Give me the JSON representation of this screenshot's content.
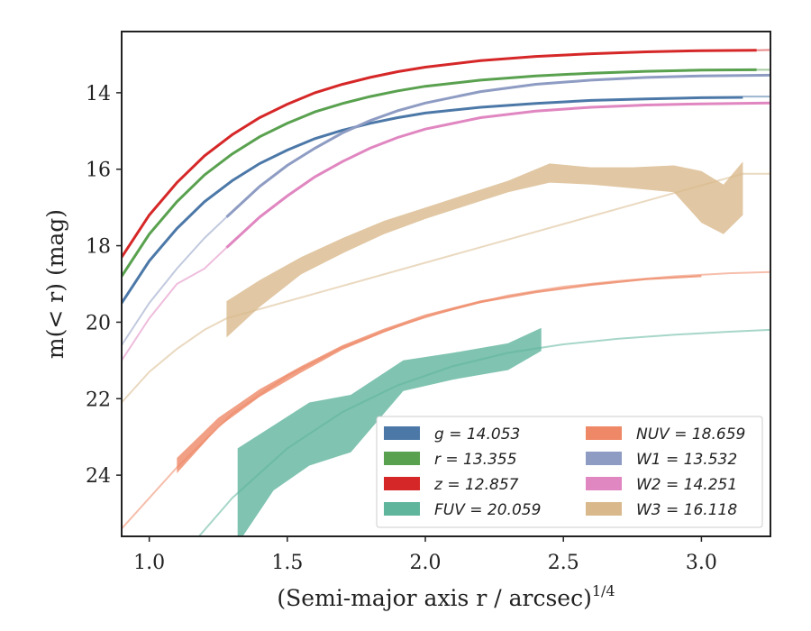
{
  "chart_data": {
    "type": "line",
    "xlabel": "(Semi-major axis r / arcsec)",
    "xlabel_sup": "1/4",
    "ylabel": "m(< r) (mag)",
    "xlim": [
      0.9,
      3.25
    ],
    "ylim": [
      25.6,
      12.4
    ],
    "y_inverted": true,
    "grid": false,
    "legend_placement": "lower-right",
    "x_ticks": [
      "1.0",
      "1.5",
      "2.0",
      "2.5",
      "3.0"
    ],
    "y_ticks": [
      "14",
      "16",
      "18",
      "20",
      "22",
      "24"
    ],
    "series": [
      {
        "name": "g = 14.053",
        "color": "#4c78a8",
        "data_line": [
          [
            0.9,
            19.5
          ],
          [
            1.0,
            18.4
          ],
          [
            1.1,
            17.55
          ],
          [
            1.2,
            16.85
          ],
          [
            1.3,
            16.3
          ],
          [
            1.4,
            15.85
          ],
          [
            1.5,
            15.5
          ],
          [
            1.6,
            15.2
          ],
          [
            1.7,
            14.98
          ],
          [
            1.8,
            14.8
          ],
          [
            1.9,
            14.65
          ],
          [
            2.0,
            14.53
          ],
          [
            2.2,
            14.38
          ],
          [
            2.4,
            14.28
          ],
          [
            2.6,
            14.2
          ],
          [
            2.8,
            14.16
          ],
          [
            3.0,
            14.13
          ],
          [
            3.15,
            14.12
          ]
        ],
        "model_line": [
          [
            3.15,
            14.1
          ],
          [
            3.25,
            14.1
          ]
        ]
      },
      {
        "name": "r = 13.355",
        "color": "#59a14f",
        "data_line": [
          [
            0.9,
            18.8
          ],
          [
            1.0,
            17.7
          ],
          [
            1.1,
            16.85
          ],
          [
            1.2,
            16.15
          ],
          [
            1.3,
            15.6
          ],
          [
            1.4,
            15.15
          ],
          [
            1.5,
            14.8
          ],
          [
            1.6,
            14.5
          ],
          [
            1.7,
            14.28
          ],
          [
            1.8,
            14.1
          ],
          [
            1.9,
            13.95
          ],
          [
            2.0,
            13.83
          ],
          [
            2.2,
            13.67
          ],
          [
            2.4,
            13.56
          ],
          [
            2.6,
            13.49
          ],
          [
            2.8,
            13.44
          ],
          [
            3.0,
            13.41
          ],
          [
            3.2,
            13.4
          ]
        ],
        "model_line": [
          [
            3.2,
            13.4
          ],
          [
            3.25,
            13.4
          ]
        ]
      },
      {
        "name": "z = 12.857",
        "color": "#d62728",
        "data_line": [
          [
            0.9,
            18.3
          ],
          [
            1.0,
            17.2
          ],
          [
            1.1,
            16.35
          ],
          [
            1.2,
            15.65
          ],
          [
            1.3,
            15.1
          ],
          [
            1.4,
            14.65
          ],
          [
            1.5,
            14.3
          ],
          [
            1.6,
            14.0
          ],
          [
            1.7,
            13.78
          ],
          [
            1.8,
            13.6
          ],
          [
            1.9,
            13.45
          ],
          [
            2.0,
            13.33
          ],
          [
            2.2,
            13.16
          ],
          [
            2.4,
            13.05
          ],
          [
            2.6,
            12.98
          ],
          [
            2.8,
            12.93
          ],
          [
            3.0,
            12.9
          ],
          [
            3.2,
            12.89
          ]
        ],
        "model_line": [
          [
            3.2,
            12.89
          ],
          [
            3.25,
            12.88
          ]
        ]
      },
      {
        "name": "FUV = 20.059",
        "color": "#5fb49c",
        "band": [
          [
            1.32,
            23.3,
            25.8
          ],
          [
            1.45,
            22.7,
            24.4
          ],
          [
            1.58,
            22.1,
            23.75
          ],
          [
            1.73,
            21.9,
            23.4
          ],
          [
            1.92,
            21.0,
            21.8
          ],
          [
            2.1,
            20.8,
            21.5
          ],
          [
            2.3,
            20.55,
            21.25
          ],
          [
            2.42,
            20.15,
            20.75
          ]
        ],
        "model_line": [
          [
            1.18,
            25.6
          ],
          [
            1.3,
            24.6
          ],
          [
            1.5,
            23.3
          ],
          [
            1.7,
            22.35
          ],
          [
            1.9,
            21.65
          ],
          [
            2.1,
            21.15
          ],
          [
            2.3,
            20.8
          ],
          [
            2.5,
            20.58
          ],
          [
            2.7,
            20.43
          ],
          [
            2.9,
            20.33
          ],
          [
            3.1,
            20.25
          ],
          [
            3.25,
            20.2
          ]
        ]
      },
      {
        "name": "NUV = 18.659",
        "color": "#ee8866",
        "band": [
          [
            1.1,
            23.55,
            23.95
          ],
          [
            1.25,
            22.5,
            22.75
          ],
          [
            1.4,
            21.75,
            21.95
          ],
          [
            1.55,
            21.15,
            21.32
          ],
          [
            1.7,
            20.6,
            20.72
          ],
          [
            1.85,
            20.17,
            20.27
          ],
          [
            2.0,
            19.8,
            19.88
          ],
          [
            2.2,
            19.43,
            19.5
          ],
          [
            2.4,
            19.18,
            19.24
          ],
          [
            2.6,
            18.99,
            19.05
          ],
          [
            2.8,
            18.85,
            18.9
          ],
          [
            3.0,
            18.77,
            18.82
          ]
        ],
        "model_line": [
          [
            0.9,
            25.4
          ],
          [
            1.0,
            24.6
          ],
          [
            1.1,
            23.8
          ],
          [
            1.3,
            22.4
          ],
          [
            1.5,
            21.4
          ],
          [
            1.7,
            20.66
          ],
          [
            1.9,
            20.1
          ],
          [
            2.1,
            19.65
          ],
          [
            2.3,
            19.3
          ],
          [
            2.5,
            19.07
          ],
          [
            2.7,
            18.92
          ],
          [
            2.9,
            18.8
          ],
          [
            3.1,
            18.72
          ],
          [
            3.25,
            18.69
          ]
        ]
      },
      {
        "name": "W1 = 13.532",
        "color": "#8e9cc3",
        "data_line": [
          [
            1.28,
            17.25
          ],
          [
            1.4,
            16.45
          ],
          [
            1.5,
            15.9
          ],
          [
            1.6,
            15.45
          ],
          [
            1.7,
            15.05
          ],
          [
            1.8,
            14.73
          ],
          [
            1.9,
            14.47
          ],
          [
            2.0,
            14.27
          ],
          [
            2.2,
            13.97
          ],
          [
            2.4,
            13.78
          ],
          [
            2.6,
            13.67
          ],
          [
            2.8,
            13.6
          ],
          [
            3.0,
            13.56
          ],
          [
            3.25,
            13.54
          ]
        ],
        "model_line": [
          [
            0.9,
            20.6
          ],
          [
            1.0,
            19.5
          ],
          [
            1.1,
            18.6
          ],
          [
            1.2,
            17.8
          ],
          [
            1.28,
            17.25
          ]
        ]
      },
      {
        "name": "W2 = 14.251",
        "color": "#e086c0",
        "data_line": [
          [
            1.28,
            18.05
          ],
          [
            1.4,
            17.25
          ],
          [
            1.5,
            16.7
          ],
          [
            1.6,
            16.2
          ],
          [
            1.7,
            15.8
          ],
          [
            1.8,
            15.45
          ],
          [
            1.9,
            15.17
          ],
          [
            2.0,
            14.95
          ],
          [
            2.2,
            14.65
          ],
          [
            2.4,
            14.48
          ],
          [
            2.6,
            14.38
          ],
          [
            2.8,
            14.32
          ],
          [
            3.0,
            14.29
          ],
          [
            3.25,
            14.27
          ]
        ],
        "model_line": [
          [
            0.9,
            21.0
          ],
          [
            1.0,
            19.9
          ],
          [
            1.1,
            19.0
          ],
          [
            1.2,
            18.6
          ],
          [
            1.28,
            18.05
          ]
        ]
      },
      {
        "name": "W3 = 16.118",
        "color": "#d9b98c",
        "band": [
          [
            1.28,
            19.45,
            20.4
          ],
          [
            1.4,
            18.9,
            19.6
          ],
          [
            1.55,
            18.3,
            18.75
          ],
          [
            1.7,
            17.8,
            18.2
          ],
          [
            1.85,
            17.35,
            17.7
          ],
          [
            2.0,
            17.0,
            17.3
          ],
          [
            2.15,
            16.65,
            16.95
          ],
          [
            2.3,
            16.3,
            16.6
          ],
          [
            2.45,
            15.85,
            16.35
          ],
          [
            2.6,
            15.95,
            16.4
          ],
          [
            2.75,
            15.95,
            16.5
          ],
          [
            2.9,
            15.9,
            16.6
          ],
          [
            3.0,
            16.05,
            17.4
          ],
          [
            3.08,
            16.4,
            17.7
          ],
          [
            3.15,
            15.8,
            17.2
          ]
        ],
        "model_line": [
          [
            0.9,
            22.1
          ],
          [
            1.0,
            21.3
          ],
          [
            1.1,
            20.7
          ],
          [
            1.2,
            20.2
          ],
          [
            1.28,
            19.9
          ],
          [
            3.15,
            16.12
          ],
          [
            3.25,
            16.12
          ]
        ]
      }
    ],
    "legend": [
      {
        "label": "g = 14.053",
        "color": "#4c78a8"
      },
      {
        "label": "r = 13.355",
        "color": "#59a14f"
      },
      {
        "label": "z = 12.857",
        "color": "#d62728"
      },
      {
        "label": "FUV = 20.059",
        "color": "#5fb49c"
      },
      {
        "label": "NUV = 18.659",
        "color": "#ee8866"
      },
      {
        "label": "W1 = 13.532",
        "color": "#8e9cc3"
      },
      {
        "label": "W2 = 14.251",
        "color": "#e086c0"
      },
      {
        "label": "W3 = 16.118",
        "color": "#d9b98c"
      }
    ]
  }
}
